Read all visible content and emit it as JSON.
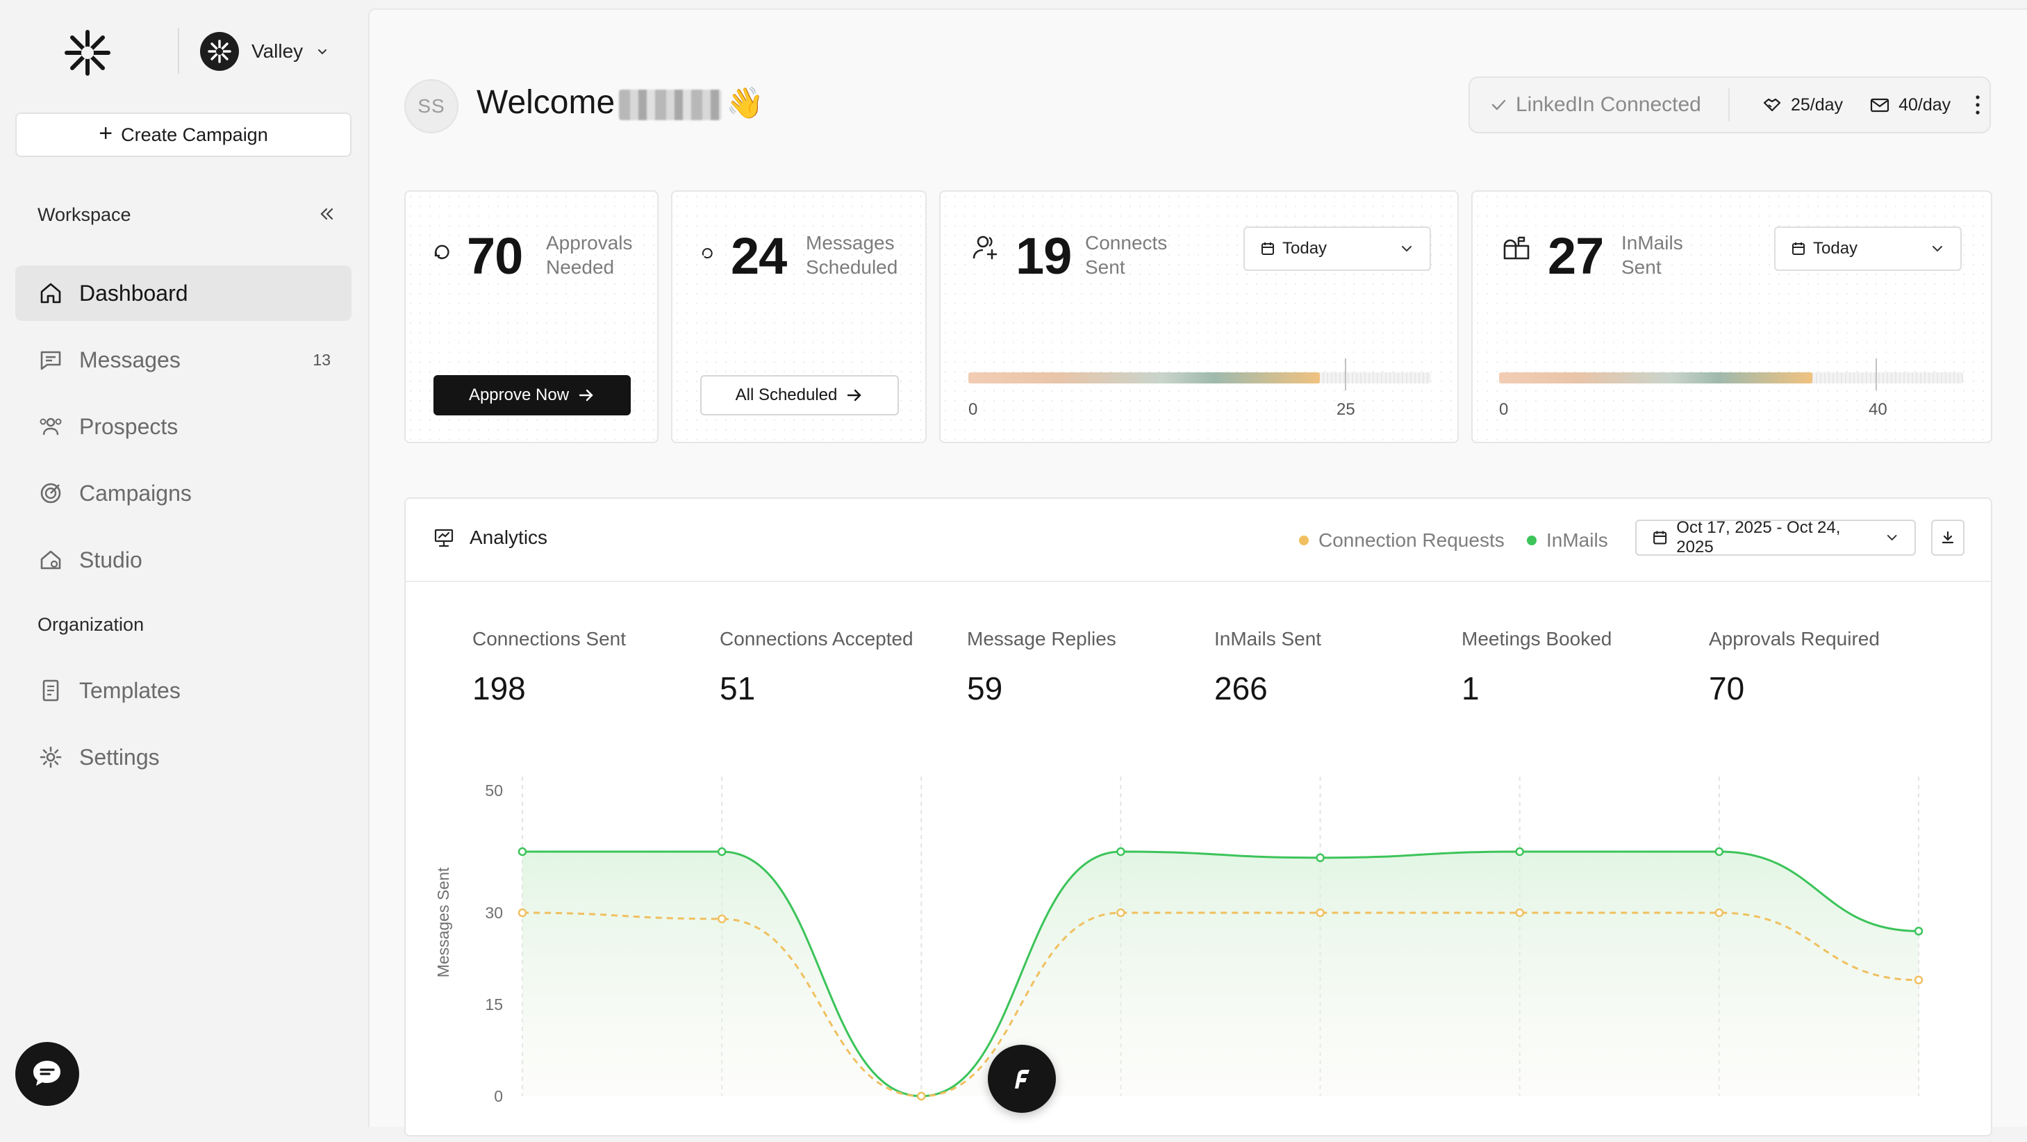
{
  "sidebar": {
    "org_name": "Valley",
    "create_campaign": "Create Campaign",
    "workspace_label": "Workspace",
    "organization_label": "Organization",
    "items": [
      {
        "label": "Dashboard",
        "icon": "home-icon"
      },
      {
        "label": "Messages",
        "icon": "message-icon",
        "badge": "13"
      },
      {
        "label": "Prospects",
        "icon": "users-icon"
      },
      {
        "label": "Campaigns",
        "icon": "target-icon"
      },
      {
        "label": "Studio",
        "icon": "studio-icon"
      },
      {
        "label": "Templates",
        "icon": "document-icon"
      },
      {
        "label": "Settings",
        "icon": "gear-icon"
      }
    ]
  },
  "header": {
    "avatar_initials": "SS",
    "welcome": "Welcome",
    "wave": "👋",
    "linkedin_status": "LinkedIn Connected",
    "connect_limit": "25/day",
    "inmail_limit": "40/day"
  },
  "cards": {
    "approvals": {
      "value": "70",
      "label_line1": "Approvals",
      "label_line2": "Needed",
      "button": "Approve Now"
    },
    "scheduled": {
      "value": "24",
      "label_line1": "Messages",
      "label_line2": "Scheduled",
      "button": "All Scheduled"
    },
    "connects": {
      "value": "19",
      "label_line1": "Connects",
      "label_line2": "Sent",
      "period": "Today",
      "min": "0",
      "max": "25",
      "progress": 0.76
    },
    "inmails": {
      "value": "27",
      "label_line1": "InMails",
      "label_line2": "Sent",
      "period": "Today",
      "min": "0",
      "max": "40",
      "progress": 0.675
    }
  },
  "analytics": {
    "title": "Analytics",
    "legend": [
      {
        "label": "Connection Requests",
        "color": "#f0c060"
      },
      {
        "label": "InMails",
        "color": "#3cc45a"
      }
    ],
    "date_range": "Oct 17, 2025 - Oct 24, 2025",
    "metrics": [
      {
        "label": "Connections Sent",
        "value": "198"
      },
      {
        "label": "Connections Accepted",
        "value": "51"
      },
      {
        "label": "Message Replies",
        "value": "59"
      },
      {
        "label": "InMails Sent",
        "value": "266"
      },
      {
        "label": "Meetings Booked",
        "value": "1"
      },
      {
        "label": "Approvals Required",
        "value": "70"
      }
    ]
  },
  "chart_data": {
    "type": "line",
    "ylabel": "Messages Sent",
    "yticks": [
      "50",
      "30",
      "15",
      "0"
    ],
    "ylim": [
      0,
      50
    ],
    "x": [
      1,
      2,
      3,
      4,
      5,
      6,
      7,
      8
    ],
    "series": [
      {
        "name": "InMails",
        "color": "#3cc45a",
        "values": [
          40,
          40,
          0,
          40,
          39,
          40,
          40,
          27
        ]
      },
      {
        "name": "Connection Requests",
        "color": "#f0c060",
        "values": [
          30,
          29,
          0,
          30,
          30,
          30,
          30,
          19
        ]
      }
    ],
    "grid": true
  }
}
